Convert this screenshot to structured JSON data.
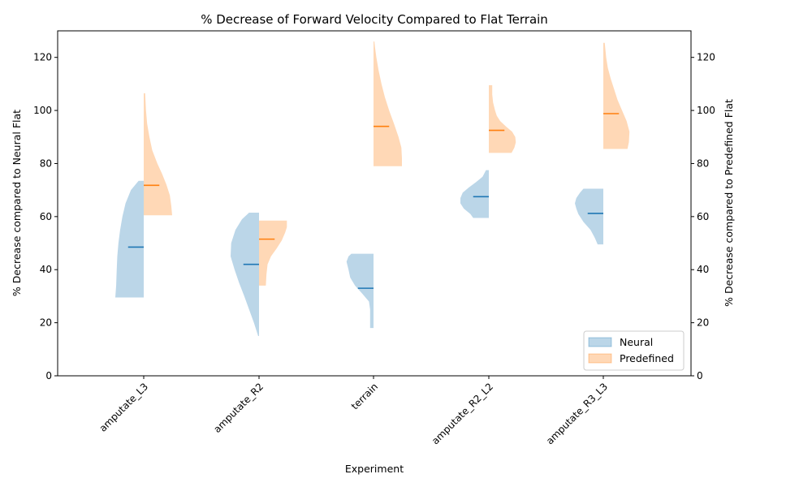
{
  "chart_data": {
    "type": "violin",
    "title": "% Decrease of Forward Velocity Compared to Flat Terrain",
    "xlabel": "Experiment",
    "ylabel_left": "% Decrease compared to Neural Flat",
    "ylabel_right": "% Decrease compared to Predefined Flat",
    "categories": [
      "amputate_L3",
      "amputate_R2",
      "terrain",
      "amputate_R2_L2",
      "amputate_R3_L3"
    ],
    "ylim": [
      0,
      130
    ],
    "yticks": [
      0,
      20,
      40,
      60,
      80,
      100,
      120
    ],
    "grid": false,
    "legend_placement": "lower-right",
    "series": [
      {
        "name": "Neural",
        "side": "left",
        "fill_color": "#1f77b4",
        "fill_opacity": 0.3,
        "median_color": "#1f77b4",
        "violins": [
          {
            "min": 29.5,
            "max": 73.5,
            "median": 48.5,
            "profile": [
              [
                29.5,
                1.0
              ],
              [
                34,
                0.97
              ],
              [
                40,
                0.95
              ],
              [
                45,
                0.93
              ],
              [
                50,
                0.89
              ],
              [
                55,
                0.83
              ],
              [
                60,
                0.75
              ],
              [
                65,
                0.64
              ],
              [
                70,
                0.45
              ],
              [
                73.5,
                0.18
              ]
            ]
          },
          {
            "min": 15,
            "max": 61.5,
            "median": 42,
            "profile": [
              [
                15,
                0.03
              ],
              [
                20,
                0.18
              ],
              [
                25,
                0.35
              ],
              [
                30,
                0.52
              ],
              [
                35,
                0.7
              ],
              [
                40,
                0.86
              ],
              [
                45,
                1.0
              ],
              [
                50,
                0.98
              ],
              [
                55,
                0.83
              ],
              [
                59,
                0.6
              ],
              [
                61.5,
                0.35
              ]
            ]
          },
          {
            "min": 18,
            "max": 46,
            "median": 33,
            "profile": [
              [
                18,
                0.12
              ],
              [
                20,
                0.12
              ],
              [
                25,
                0.12
              ],
              [
                28,
                0.16
              ],
              [
                31,
                0.4
              ],
              [
                34,
                0.65
              ],
              [
                37,
                0.82
              ],
              [
                40,
                0.88
              ],
              [
                43,
                0.95
              ],
              [
                45,
                0.88
              ],
              [
                46,
                0.78
              ]
            ]
          },
          {
            "min": 59.5,
            "max": 77.5,
            "median": 67.5,
            "profile": [
              [
                59.5,
                0.55
              ],
              [
                61,
                0.65
              ],
              [
                63,
                0.88
              ],
              [
                65,
                1.0
              ],
              [
                67,
                1.0
              ],
              [
                69,
                0.92
              ],
              [
                71,
                0.7
              ],
              [
                73,
                0.45
              ],
              [
                75,
                0.22
              ],
              [
                77.5,
                0.1
              ]
            ]
          },
          {
            "min": 49.5,
            "max": 70.5,
            "median": 61.2,
            "profile": [
              [
                49.5,
                0.2
              ],
              [
                52,
                0.3
              ],
              [
                55,
                0.45
              ],
              [
                58,
                0.7
              ],
              [
                61,
                0.88
              ],
              [
                63,
                0.95
              ],
              [
                65,
                1.0
              ],
              [
                67,
                0.95
              ],
              [
                69,
                0.82
              ],
              [
                70.5,
                0.7
              ]
            ]
          }
        ]
      },
      {
        "name": "Predefined",
        "side": "right",
        "fill_color": "#ff7f0e",
        "fill_opacity": 0.3,
        "median_color": "#ff7f0e",
        "violins": [
          {
            "min": 60.5,
            "max": 106.5,
            "median": 71.8,
            "profile": [
              [
                60.5,
                1.0
              ],
              [
                64,
                0.97
              ],
              [
                68,
                0.92
              ],
              [
                72,
                0.8
              ],
              [
                76,
                0.65
              ],
              [
                80,
                0.48
              ],
              [
                85,
                0.3
              ],
              [
                90,
                0.2
              ],
              [
                95,
                0.12
              ],
              [
                100,
                0.08
              ],
              [
                106.5,
                0.05
              ]
            ]
          },
          {
            "min": 34,
            "max": 58.5,
            "median": 51.5,
            "profile": [
              [
                34,
                0.24
              ],
              [
                38,
                0.26
              ],
              [
                42,
                0.3
              ],
              [
                45,
                0.42
              ],
              [
                48,
                0.62
              ],
              [
                51,
                0.8
              ],
              [
                54,
                0.92
              ],
              [
                56,
                0.98
              ],
              [
                58.5,
                0.98
              ]
            ]
          },
          {
            "min": 79,
            "max": 126,
            "median": 94,
            "profile": [
              [
                79,
                1.0
              ],
              [
                82,
                1.0
              ],
              [
                86,
                0.98
              ],
              [
                90,
                0.88
              ],
              [
                95,
                0.72
              ],
              [
                100,
                0.55
              ],
              [
                105,
                0.4
              ],
              [
                110,
                0.28
              ],
              [
                115,
                0.18
              ],
              [
                120,
                0.1
              ],
              [
                124,
                0.05
              ],
              [
                126,
                0.03
              ]
            ]
          },
          {
            "min": 84,
            "max": 109.5,
            "median": 92.5,
            "profile": [
              [
                84,
                0.8
              ],
              [
                86,
                0.9
              ],
              [
                88,
                0.95
              ],
              [
                90,
                0.93
              ],
              [
                92,
                0.82
              ],
              [
                94,
                0.6
              ],
              [
                96,
                0.4
              ],
              [
                98,
                0.28
              ],
              [
                100,
                0.22
              ],
              [
                103,
                0.15
              ],
              [
                106,
                0.12
              ],
              [
                109.5,
                0.12
              ]
            ]
          },
          {
            "min": 85.5,
            "max": 125.5,
            "median": 98.8,
            "profile": [
              [
                85.5,
                0.85
              ],
              [
                88,
                0.9
              ],
              [
                92,
                0.92
              ],
              [
                96,
                0.82
              ],
              [
                100,
                0.66
              ],
              [
                104,
                0.5
              ],
              [
                108,
                0.38
              ],
              [
                112,
                0.26
              ],
              [
                116,
                0.16
              ],
              [
                120,
                0.1
              ],
              [
                125.5,
                0.05
              ]
            ]
          }
        ]
      }
    ]
  }
}
